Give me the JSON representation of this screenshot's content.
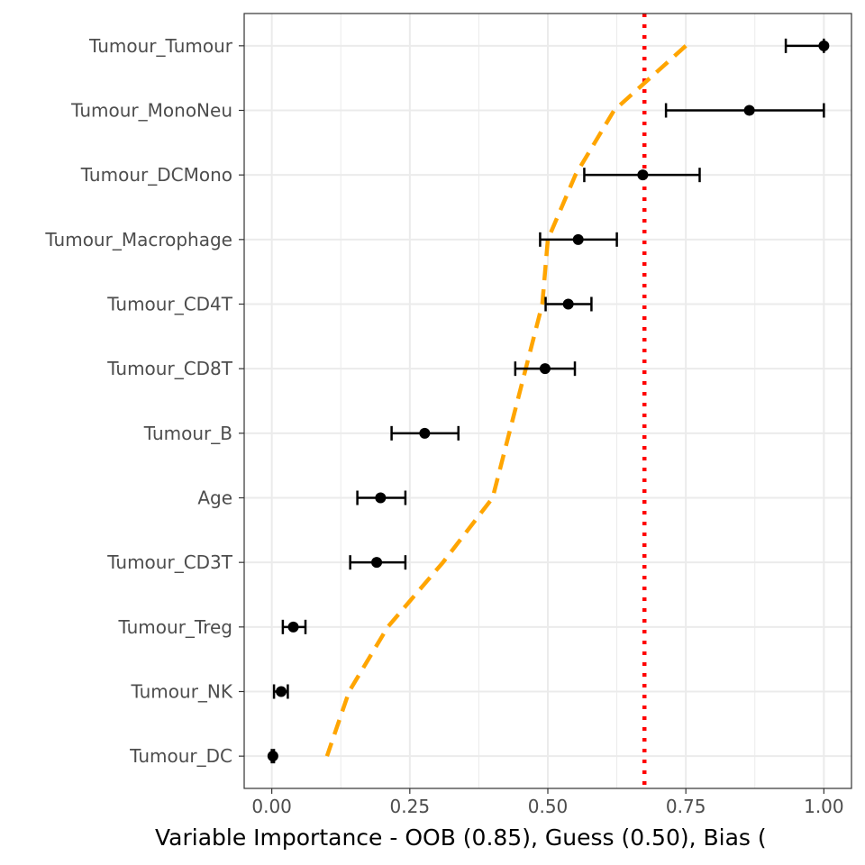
{
  "chart_data": {
    "type": "scatter",
    "title": "",
    "xlabel": "Variable Importance - OOB (0.85), Guess (0.50), Bias (",
    "ylabel": "",
    "xlim": [
      -0.05,
      1.05
    ],
    "x_ticks": [
      0.0,
      0.25,
      0.5,
      0.75,
      1.0
    ],
    "x_tick_labels": [
      "0.00",
      "0.25",
      "0.50",
      "0.75",
      "1.00"
    ],
    "grid": true,
    "legend": "none",
    "categories": [
      "Tumour_Tumour",
      "Tumour_MonoNeu",
      "Tumour_DCMono",
      "Tumour_Macrophage",
      "Tumour_CD4T",
      "Tumour_CD8T",
      "Tumour_B",
      "Age",
      "Tumour_CD3T",
      "Tumour_Treg",
      "Tumour_NK",
      "Tumour_DC"
    ],
    "series": [
      {
        "type": "point-errorbar",
        "color": "#000000",
        "values": [
          1.0,
          0.865,
          0.672,
          0.555,
          0.537,
          0.495,
          0.277,
          0.197,
          0.19,
          0.039,
          0.017,
          0.002
        ],
        "lower": [
          0.931,
          0.714,
          0.566,
          0.486,
          0.496,
          0.441,
          0.217,
          0.155,
          0.142,
          0.02,
          0.004,
          0.0
        ],
        "upper": [
          1.0,
          1.0,
          0.775,
          0.625,
          0.579,
          0.549,
          0.338,
          0.242,
          0.242,
          0.061,
          0.029,
          0.004
        ]
      },
      {
        "type": "line",
        "style": "dashed",
        "color": "#FFA500",
        "values": [
          0.75,
          0.62,
          0.55,
          0.5,
          0.49,
          0.46,
          0.43,
          0.4,
          0.31,
          0.21,
          0.14,
          0.1
        ]
      }
    ],
    "reference_line": {
      "x": 0.675,
      "color": "#FF0000",
      "style": "dotted"
    }
  }
}
